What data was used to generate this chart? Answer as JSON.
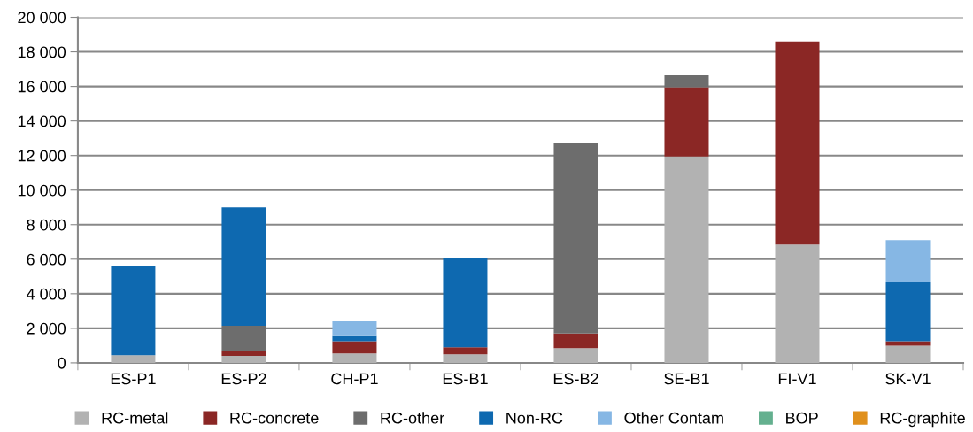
{
  "chart_data": {
    "type": "bar",
    "stacked": true,
    "categories": [
      "ES-P1",
      "ES-P2",
      "CH-P1",
      "ES-B1",
      "ES-B2",
      "SE-B1",
      "FI-V1",
      "SK-V1"
    ],
    "series": [
      {
        "name": "RC-metal",
        "color": "#b2b2b2",
        "values": [
          450,
          400,
          550,
          500,
          850,
          11950,
          6850,
          1000
        ]
      },
      {
        "name": "RC-concrete",
        "color": "#8b2725",
        "values": [
          0,
          300,
          700,
          400,
          850,
          4000,
          11750,
          250
        ]
      },
      {
        "name": "RC-other",
        "color": "#6d6d6d",
        "values": [
          0,
          1450,
          0,
          0,
          11000,
          700,
          0,
          0
        ]
      },
      {
        "name": "Non-RC",
        "color": "#0e69b0",
        "values": [
          5150,
          6850,
          350,
          5150,
          0,
          0,
          0,
          3450
        ]
      },
      {
        "name": "Other Contam",
        "color": "#86b7e4",
        "values": [
          0,
          0,
          800,
          0,
          0,
          0,
          0,
          2400
        ]
      },
      {
        "name": "BOP",
        "color": "#64b08f",
        "values": [
          0,
          0,
          0,
          0,
          0,
          0,
          0,
          0
        ]
      },
      {
        "name": "RC-graphite",
        "color": "#e0901c",
        "values": [
          0,
          0,
          0,
          0,
          0,
          0,
          0,
          0
        ]
      }
    ],
    "ylim": [
      0,
      20000
    ],
    "yticks": [
      0,
      {
        "value": 2000,
        "label": "2 000"
      },
      {
        "value": 4000,
        "label": "4 000"
      },
      {
        "value": 6000,
        "label": "6 000"
      },
      {
        "value": 8000,
        "label": "8 000"
      },
      {
        "value": 10000,
        "label": "10 000"
      },
      {
        "value": 12000,
        "label": "12 000"
      },
      {
        "value": 14000,
        "label": "14 000"
      },
      {
        "value": 16000,
        "label": "16 000"
      },
      {
        "value": 18000,
        "label": "18 000"
      },
      {
        "value": 20000,
        "label": "20 000"
      }
    ],
    "grid": "y",
    "legend": "bottom"
  }
}
